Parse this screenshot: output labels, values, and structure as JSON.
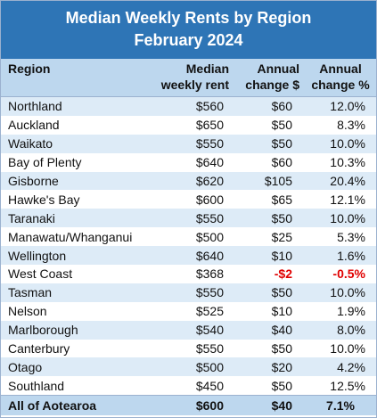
{
  "title": {
    "line1": "Median Weekly Rents by Region",
    "line2": "February 2024"
  },
  "columns": {
    "region": "Region",
    "rent_line1": "Median",
    "rent_line2": "weekly rent",
    "dollar_line1": "Annual",
    "dollar_line2": "change $",
    "pct_line1": "Annual",
    "pct_line2": "change %"
  },
  "rows": [
    {
      "region": "Northland",
      "rent": "$560",
      "change_dollar": "$60",
      "change_pct": "12.0%"
    },
    {
      "region": "Auckland",
      "rent": "$650",
      "change_dollar": "$50",
      "change_pct": "8.3%"
    },
    {
      "region": "Waikato",
      "rent": "$550",
      "change_dollar": "$50",
      "change_pct": "10.0%"
    },
    {
      "region": "Bay of Plenty",
      "rent": "$640",
      "change_dollar": "$60",
      "change_pct": "10.3%"
    },
    {
      "region": "Gisborne",
      "rent": "$620",
      "change_dollar": "$105",
      "change_pct": "20.4%"
    },
    {
      "region": "Hawke's Bay",
      "rent": "$600",
      "change_dollar": "$65",
      "change_pct": "12.1%"
    },
    {
      "region": "Taranaki",
      "rent": "$550",
      "change_dollar": "$50",
      "change_pct": "10.0%"
    },
    {
      "region": "Manawatu/Whanganui",
      "rent": "$500",
      "change_dollar": "$25",
      "change_pct": "5.3%"
    },
    {
      "region": "Wellington",
      "rent": "$640",
      "change_dollar": "$10",
      "change_pct": "1.6%"
    },
    {
      "region": "West Coast",
      "rent": "$368",
      "change_dollar": "-$2",
      "change_pct": "-0.5%",
      "negative": true
    },
    {
      "region": "Tasman",
      "rent": "$550",
      "change_dollar": "$50",
      "change_pct": "10.0%"
    },
    {
      "region": "Nelson",
      "rent": "$525",
      "change_dollar": "$10",
      "change_pct": "1.9%"
    },
    {
      "region": "Marlborough",
      "rent": "$540",
      "change_dollar": "$40",
      "change_pct": "8.0%"
    },
    {
      "region": "Canterbury",
      "rent": "$550",
      "change_dollar": "$50",
      "change_pct": "10.0%"
    },
    {
      "region": "Otago",
      "rent": "$500",
      "change_dollar": "$20",
      "change_pct": "4.2%"
    },
    {
      "region": "Southland",
      "rent": "$450",
      "change_dollar": "$50",
      "change_pct": "12.5%"
    }
  ],
  "total": {
    "region": "All of Aotearoa",
    "rent": "$600",
    "change_dollar": "$40",
    "change_pct": "7.1%"
  },
  "colors": {
    "title_bg": "#2e75b6",
    "header_bg": "#bdd7ee",
    "band_bg": "#ddebf7",
    "negative": "#e00000"
  }
}
